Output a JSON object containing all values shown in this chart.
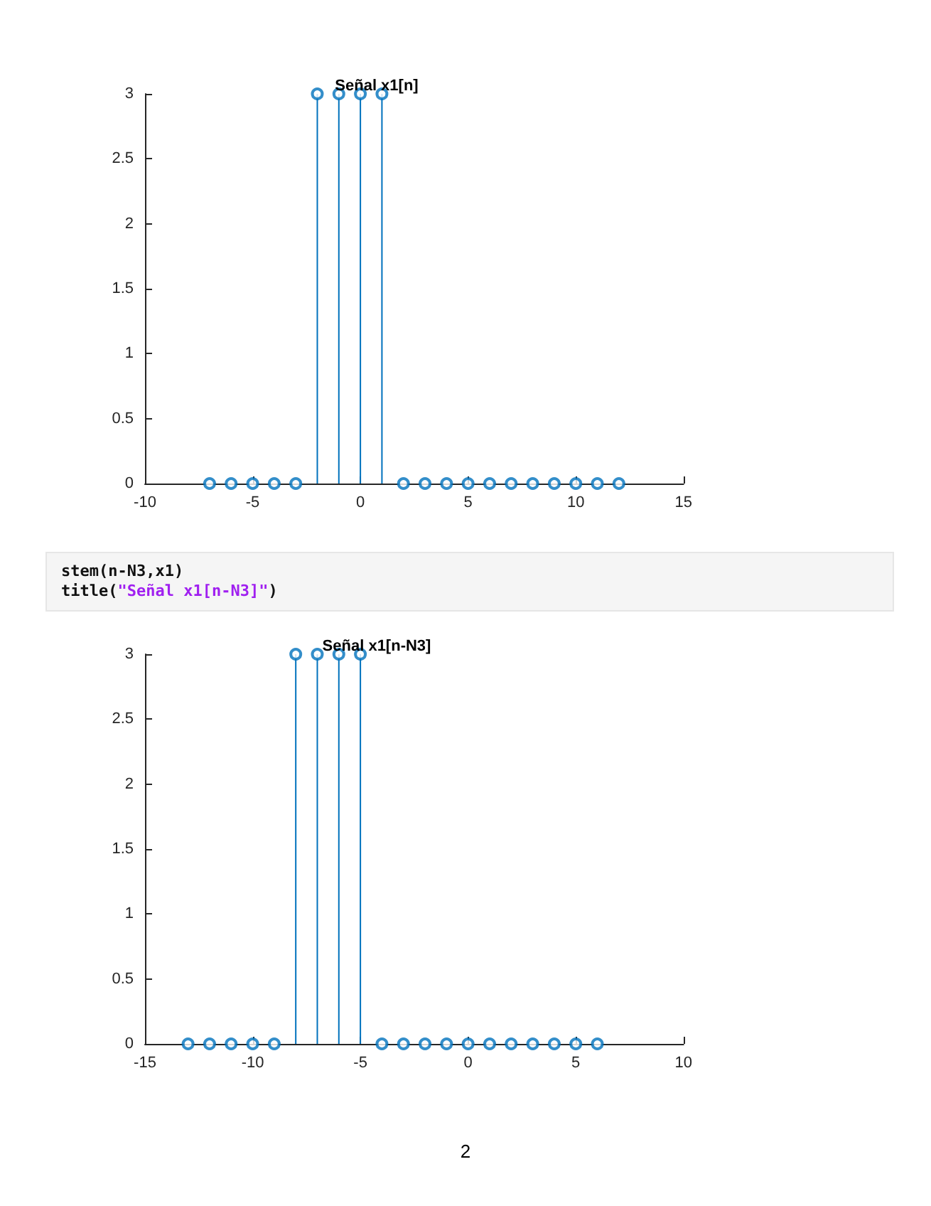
{
  "chart_data": [
    {
      "type": "lollipop",
      "title": "Señal x1[n]",
      "x": [
        -7,
        -6,
        -5,
        -4,
        -3,
        -2,
        -1,
        0,
        1,
        2,
        3,
        4,
        5,
        6,
        7,
        8,
        9,
        10,
        11,
        12
      ],
      "values": [
        0,
        0,
        0,
        0,
        0,
        3,
        3,
        3,
        3,
        0,
        0,
        0,
        0,
        0,
        0,
        0,
        0,
        0,
        0,
        0
      ],
      "color": "#0072bd",
      "marker": "circle",
      "xlim": [
        -10,
        15
      ],
      "xticks": [
        -10,
        -5,
        0,
        5,
        10,
        15
      ],
      "ylim": [
        0,
        3
      ],
      "yticks": [
        0,
        0.5,
        1,
        1.5,
        2,
        2.5,
        3
      ],
      "grid": false
    },
    {
      "type": "lollipop",
      "title": "Señal x1[n-N3]",
      "x": [
        -13,
        -12,
        -11,
        -10,
        -9,
        -8,
        -7,
        -6,
        -5,
        -4,
        -3,
        -2,
        -1,
        0,
        1,
        2,
        3,
        4,
        5,
        6
      ],
      "values": [
        0,
        0,
        0,
        0,
        0,
        3,
        3,
        3,
        3,
        0,
        0,
        0,
        0,
        0,
        0,
        0,
        0,
        0,
        0,
        0
      ],
      "color": "#0072bd",
      "marker": "circle",
      "xlim": [
        -15,
        10
      ],
      "xticks": [
        -15,
        -10,
        -5,
        0,
        5,
        10
      ],
      "ylim": [
        0,
        3
      ],
      "yticks": [
        0,
        0.5,
        1,
        1.5,
        2,
        2.5,
        3
      ],
      "grid": false,
      "annotations": [
        "stem(n-N3,x1)\ntitle(\"Señal x1[n-N3]\")",
        "2"
      ]
    }
  ]
}
